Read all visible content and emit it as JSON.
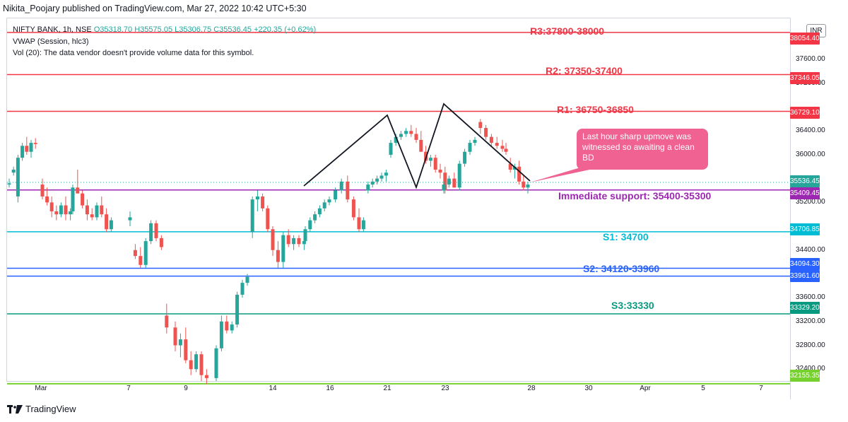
{
  "header": {
    "publisher_line": "Nikita_Poojary published on TradingView.com, Mar 27, 2022 10:42 UTC+5:30"
  },
  "legend": {
    "symbol": "NIFTY BANK, 1h, NSE",
    "o": "O35318.70",
    "h": "H35575.05",
    "l": "L35306.75",
    "c": "C35536.45",
    "change": "+220.35 (+0.62%)",
    "vwap": "VWAP (Session, hlc3)",
    "vol": "Vol (20): The data vendor doesn't provide volume data for this symbol."
  },
  "currency_badge": "INR",
  "annotations": {
    "r3": "R3:37800-38000",
    "r2": "R2: 37350-37400",
    "r1": "R1: 36750-36850",
    "immediate_support": "Immediate support: 35400-35300",
    "s1": "S1: 34700",
    "s2": "S2: 34120-33960",
    "s3": "S3:33330",
    "callout": "Last hour sharp upmove was witnessed so awaiting a clean BD"
  },
  "price_tags": {
    "r3": "38054.40",
    "r2": "37346.05",
    "r1": "36729.10",
    "last": "35536.45",
    "support": "35409.45",
    "s1": "34706.85",
    "s2a": "34094.30",
    "s2b": "33961.60",
    "s3": "33329.20",
    "bottom": "32155.35"
  },
  "y_axis_ticks": [
    "37600.00",
    "37200.00",
    "36400.00",
    "36000.00",
    "35200.00",
    "34400.00",
    "33600.00",
    "33200.00",
    "32800.00",
    "32400.00"
  ],
  "x_axis_labels": [
    "Mar",
    "7",
    "9",
    "14",
    "16",
    "21",
    "23",
    "28",
    "30",
    "Apr",
    "5",
    "7"
  ],
  "footer": {
    "brand": "TradingView"
  },
  "colors": {
    "up": "#26a69a",
    "down": "#ef5350",
    "resistance": "#f23645",
    "support_purple": "#9c27b0",
    "s1": "#00bcd4",
    "s2": "#2962ff",
    "s3": "#089981",
    "bottom": "#76d12f",
    "callout": "#f06292"
  },
  "chart_data": {
    "type": "candlestick",
    "symbol": "NIFTY BANK",
    "interval": "1h",
    "ylim": [
      32000,
      38100
    ],
    "levels": [
      38054.4,
      37346.05,
      36729.1,
      35409.45,
      34706.85,
      34094.3,
      33961.6,
      33329.2,
      32155.35
    ],
    "last_price": 35536.45,
    "candles": [
      [
        35500,
        35600,
        35450,
        35520
      ],
      [
        35700,
        35800,
        35650,
        35750
      ],
      [
        35300,
        36000,
        35200,
        35950
      ],
      [
        35950,
        36200,
        35900,
        36150
      ],
      [
        36150,
        36300,
        36000,
        36050
      ],
      [
        36050,
        36250,
        35950,
        36200
      ],
      [
        36200,
        36280,
        36100,
        36180
      ],
      [
        35500,
        35600,
        35250,
        35300
      ],
      [
        35300,
        35450,
        35150,
        35200
      ],
      [
        35200,
        35300,
        34950,
        35050
      ],
      [
        35050,
        35150,
        34900,
        35000
      ],
      [
        35000,
        35200,
        34950,
        35150
      ],
      [
        35150,
        35300,
        34900,
        35000
      ],
      [
        35000,
        35100,
        34900,
        35050
      ],
      [
        35050,
        35500,
        35000,
        35450
      ],
      [
        35450,
        35750,
        35400,
        35350
      ],
      [
        35350,
        35400,
        35100,
        35150
      ],
      [
        35150,
        35250,
        34900,
        35000
      ],
      [
        35000,
        35100,
        34900,
        34950
      ],
      [
        34950,
        35200,
        34900,
        35150
      ],
      [
        35150,
        35300,
        34950,
        35000
      ],
      [
        35000,
        35100,
        34700,
        34750
      ],
      [
        34750,
        34950,
        34700,
        34900
      ],
      [
        34900,
        35050,
        34800,
        34950
      ],
      [
        34400,
        34500,
        34250,
        34300
      ],
      [
        34300,
        34450,
        34100,
        34150
      ],
      [
        34150,
        34600,
        34100,
        34550
      ],
      [
        34550,
        34900,
        34500,
        34850
      ],
      [
        34850,
        34900,
        34550,
        34600
      ],
      [
        34600,
        34650,
        34400,
        34450
      ],
      [
        33300,
        33500,
        33000,
        33100
      ],
      [
        33100,
        33200,
        32700,
        32800
      ],
      [
        32800,
        33000,
        32600,
        32900
      ],
      [
        32900,
        33100,
        32500,
        32550
      ],
      [
        32550,
        32700,
        32300,
        32400
      ],
      [
        32400,
        32700,
        32350,
        32650
      ],
      [
        32650,
        32700,
        32200,
        32300
      ],
      [
        32300,
        32400,
        32150,
        32250
      ],
      [
        32250,
        32800,
        32200,
        32750
      ],
      [
        32750,
        33300,
        32700,
        33200
      ],
      [
        33200,
        33300,
        33000,
        33050
      ],
      [
        33050,
        33200,
        33000,
        33150
      ],
      [
        33150,
        33700,
        33100,
        33650
      ],
      [
        33650,
        33900,
        33600,
        33850
      ],
      [
        33850,
        34000,
        33800,
        33950
      ],
      [
        34700,
        35300,
        34600,
        35250
      ],
      [
        35250,
        35400,
        35050,
        35300
      ],
      [
        35300,
        35350,
        35050,
        35100
      ],
      [
        35100,
        35150,
        34700,
        34750
      ],
      [
        34750,
        34800,
        34300,
        34400
      ],
      [
        34400,
        34550,
        34100,
        34200
      ],
      [
        34200,
        34700,
        34100,
        34650
      ],
      [
        34650,
        34750,
        34450,
        34500
      ],
      [
        34500,
        34650,
        34400,
        34600
      ],
      [
        34600,
        34650,
        34450,
        34500
      ],
      [
        34500,
        34600,
        34400,
        34550
      ],
      [
        34550,
        34800,
        34500,
        34750
      ],
      [
        34750,
        34950,
        34700,
        34900
      ],
      [
        34900,
        35050,
        34850,
        35000
      ],
      [
        35000,
        35150,
        34950,
        35100
      ],
      [
        35100,
        35250,
        35050,
        35200
      ],
      [
        35200,
        35300,
        35150,
        35250
      ],
      [
        35250,
        35450,
        35200,
        35400
      ],
      [
        35400,
        35600,
        35350,
        35550
      ],
      [
        35550,
        35650,
        35200,
        35250
      ],
      [
        35250,
        35300,
        34900,
        34950
      ],
      [
        34950,
        35100,
        34700,
        34750
      ],
      [
        34750,
        34950,
        34700,
        34900
      ],
      [
        35400,
        35550,
        35350,
        35500
      ],
      [
        35500,
        35600,
        35450,
        35550
      ],
      [
        35550,
        35650,
        35500,
        35600
      ],
      [
        35600,
        35700,
        35550,
        35650
      ],
      [
        35650,
        35750,
        35550,
        35700
      ],
      [
        36000,
        36250,
        35950,
        36200
      ],
      [
        36200,
        36350,
        36150,
        36300
      ],
      [
        36300,
        36400,
        36250,
        36350
      ],
      [
        36350,
        36450,
        36300,
        36400
      ],
      [
        36400,
        36500,
        36300,
        36350
      ],
      [
        36350,
        36450,
        36200,
        36250
      ],
      [
        36250,
        36400,
        36100,
        36050
      ],
      [
        36050,
        36150,
        35850,
        35900
      ],
      [
        35900,
        36000,
        35800,
        35950
      ],
      [
        35950,
        36000,
        35700,
        35750
      ],
      [
        35750,
        35850,
        35600,
        35700
      ],
      [
        35700,
        35800,
        35350,
        35400
      ],
      [
        35400,
        35550,
        35350,
        35500
      ],
      [
        35500,
        35650,
        35450,
        35600
      ],
      [
        35600,
        35700,
        35450,
        35450
      ],
      [
        35450,
        35900,
        35400,
        35850
      ],
      [
        35850,
        36100,
        35800,
        36050
      ],
      [
        36050,
        36250,
        36000,
        36200
      ],
      [
        36200,
        36300,
        36150,
        36250
      ],
      [
        36550,
        36600,
        36350,
        36450
      ],
      [
        36450,
        36500,
        36250,
        36300
      ],
      [
        36300,
        36350,
        36150,
        36200
      ],
      [
        36200,
        36300,
        36100,
        36150
      ],
      [
        36150,
        36250,
        36050,
        36100
      ],
      [
        36100,
        36200,
        36000,
        36050
      ],
      [
        35850,
        35950,
        35700,
        35750
      ],
      [
        35750,
        35850,
        35600,
        35800
      ],
      [
        35800,
        35900,
        35500,
        35550
      ],
      [
        35550,
        35650,
        35400,
        35450
      ],
      [
        35450,
        35550,
        35350,
        35500
      ],
      [
        35500,
        35550,
        35400,
        35450
      ],
      [
        35450,
        35500,
        35300,
        35350
      ],
      [
        35350,
        35450,
        35250,
        35300
      ],
      [
        35300,
        35400,
        35250,
        35350
      ],
      [
        35350,
        35450,
        35200,
        35250
      ],
      [
        35250,
        35350,
        35150,
        35300
      ],
      [
        35318.7,
        35575.05,
        35306.75,
        35536.45
      ]
    ]
  }
}
